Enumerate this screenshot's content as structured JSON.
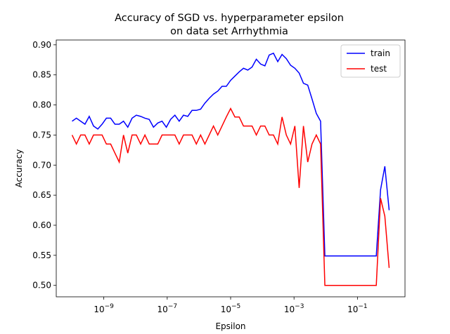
{
  "chart_data": {
    "type": "line",
    "title": [
      "Accuracy of SGD vs. hyperparameter epsilon",
      "on data set Arrhythmia"
    ],
    "xlabel": "Epsilon",
    "ylabel": "Accuracy",
    "xscale": "log",
    "x": [
      1e-10,
      1.365e-10,
      1.864e-10,
      2.543e-10,
      3.471e-10,
      4.738e-10,
      6.467e-10,
      8.826e-10,
      1.205e-09,
      1.644e-09,
      2.244e-09,
      3.064e-09,
      4.181e-09,
      5.707e-09,
      7.79e-09,
      1.063e-08,
      1.451e-08,
      1.981e-08,
      2.704e-08,
      3.69e-08,
      5.037e-08,
      6.875e-08,
      9.384e-08,
      1.281e-07,
      1.748e-07,
      2.387e-07,
      3.258e-07,
      4.446e-07,
      6.069e-07,
      8.286e-07,
      1.131e-06,
      1.544e-06,
      2.107e-06,
      2.876e-06,
      3.926e-06,
      5.358e-06,
      7.314e-06,
      1e-05,
      1.365e-05,
      1.864e-05,
      2.543e-05,
      3.471e-05,
      4.738e-05,
      6.467e-05,
      8.826e-05,
      0.0001205,
      0.0001644,
      0.0002244,
      0.0003064,
      0.0004181,
      0.0005707,
      0.000779,
      0.001063,
      0.001451,
      0.001981,
      0.002704,
      0.00369,
      0.005037,
      0.006875,
      0.009384,
      0.01281,
      0.01748,
      0.02387,
      0.03258,
      0.04446,
      0.06069,
      0.08286,
      0.1131,
      0.1544,
      0.2107,
      0.2876,
      0.3926,
      0.5358,
      0.7314,
      1
    ],
    "series": [
      {
        "name": "train",
        "color": "#0000ff",
        "values": [
          0.773,
          0.778,
          0.773,
          0.768,
          0.781,
          0.765,
          0.76,
          0.768,
          0.778,
          0.778,
          0.768,
          0.768,
          0.773,
          0.763,
          0.778,
          0.783,
          0.781,
          0.778,
          0.776,
          0.763,
          0.77,
          0.773,
          0.763,
          0.776,
          0.783,
          0.773,
          0.783,
          0.781,
          0.791,
          0.791,
          0.793,
          0.803,
          0.811,
          0.818,
          0.823,
          0.831,
          0.831,
          0.841,
          0.848,
          0.855,
          0.861,
          0.858,
          0.863,
          0.876,
          0.868,
          0.865,
          0.883,
          0.886,
          0.872,
          0.884,
          0.877,
          0.866,
          0.861,
          0.853,
          0.836,
          0.833,
          0.81,
          0.786,
          0.773,
          0.549,
          0.549,
          0.549,
          0.549,
          0.549,
          0.549,
          0.549,
          0.549,
          0.549,
          0.549,
          0.549,
          0.549,
          0.549,
          0.659,
          0.698,
          0.625
        ]
      },
      {
        "name": "test",
        "color": "#ff0000",
        "values": [
          0.75,
          0.735,
          0.75,
          0.75,
          0.735,
          0.75,
          0.75,
          0.75,
          0.735,
          0.735,
          0.72,
          0.705,
          0.75,
          0.72,
          0.75,
          0.75,
          0.735,
          0.75,
          0.735,
          0.735,
          0.735,
          0.75,
          0.75,
          0.75,
          0.75,
          0.735,
          0.75,
          0.75,
          0.75,
          0.735,
          0.75,
          0.735,
          0.75,
          0.765,
          0.75,
          0.765,
          0.78,
          0.794,
          0.78,
          0.78,
          0.765,
          0.765,
          0.765,
          0.75,
          0.765,
          0.765,
          0.75,
          0.75,
          0.735,
          0.78,
          0.75,
          0.735,
          0.765,
          0.662,
          0.765,
          0.705,
          0.735,
          0.75,
          0.735,
          0.5,
          0.5,
          0.5,
          0.5,
          0.5,
          0.5,
          0.5,
          0.5,
          0.5,
          0.5,
          0.5,
          0.5,
          0.5,
          0.645,
          0.615,
          0.529
        ]
      }
    ],
    "xlim": [
      3.162e-11,
      3.162
    ],
    "xticks": [
      {
        "value": 1e-09,
        "label": "10",
        "exponent": "−9"
      },
      {
        "value": 1e-07,
        "label": "10",
        "exponent": "−7"
      },
      {
        "value": 1e-05,
        "label": "10",
        "exponent": "−5"
      },
      {
        "value": 0.001,
        "label": "10",
        "exponent": "−3"
      },
      {
        "value": 0.1,
        "label": "10",
        "exponent": "−1"
      }
    ],
    "ylim": [
      0.481,
      0.908
    ],
    "yticks": [
      {
        "value": 0.5,
        "label": "0.50"
      },
      {
        "value": 0.55,
        "label": "0.55"
      },
      {
        "value": 0.6,
        "label": "0.60"
      },
      {
        "value": 0.65,
        "label": "0.65"
      },
      {
        "value": 0.7,
        "label": "0.70"
      },
      {
        "value": 0.75,
        "label": "0.75"
      },
      {
        "value": 0.8,
        "label": "0.80"
      },
      {
        "value": 0.85,
        "label": "0.85"
      },
      {
        "value": 0.9,
        "label": "0.90"
      }
    ],
    "legend": "upper right",
    "grid": false
  }
}
